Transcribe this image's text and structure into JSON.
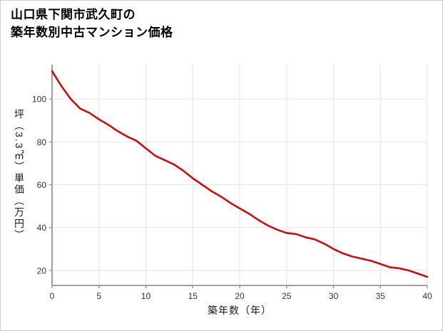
{
  "title": {
    "line1": "山口県下関市武久町の",
    "line2": "築年数別中古マンション価格"
  },
  "chart_data": {
    "type": "line",
    "title": "山口県下関市武久町の築年数別中古マンション価格",
    "xlabel": "築年数（年）",
    "ylabel": "坪（3.3㎡）単価（万円）",
    "x": [
      0,
      1,
      2,
      3,
      4,
      5,
      6,
      7,
      8,
      9,
      10,
      11,
      12,
      13,
      14,
      15,
      16,
      17,
      18,
      19,
      20,
      21,
      22,
      23,
      24,
      25,
      26,
      27,
      28,
      29,
      30,
      31,
      32,
      33,
      34,
      35,
      36,
      37,
      38,
      39,
      40
    ],
    "values": [
      113,
      106,
      100,
      95.5,
      93.5,
      90.5,
      88,
      85,
      82.5,
      80.5,
      77,
      73.5,
      71.5,
      69.5,
      66.5,
      63,
      60,
      57,
      54.5,
      51.5,
      49,
      46.5,
      43.5,
      41,
      39,
      37.5,
      37,
      35.5,
      34.5,
      32.5,
      30,
      28,
      26.5,
      25.5,
      24.5,
      23,
      21.5,
      21,
      20,
      18.5,
      17
    ],
    "x_ticks": [
      0,
      5,
      10,
      15,
      20,
      25,
      30,
      35,
      40
    ],
    "y_ticks": [
      20,
      40,
      60,
      80,
      100
    ],
    "xlim": [
      0,
      40
    ],
    "ylim": [
      13,
      116
    ],
    "grid": true,
    "legend_position": "none"
  },
  "colors": {
    "line": "#cc0d0d",
    "grid": "#e3e3e3",
    "axis": "#949494",
    "tick_label": "#333333",
    "background": "#ffffff",
    "border": "#cccccc"
  }
}
